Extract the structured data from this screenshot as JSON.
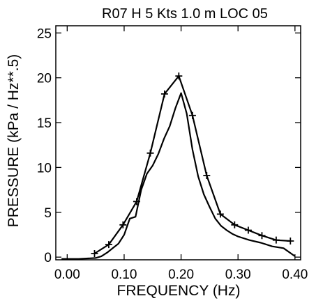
{
  "chart_data": {
    "type": "line",
    "title": "R07 H  5 Kts  1.0 m  LOC 05",
    "xlabel": "FREQUENCY  (Hz)",
    "ylabel": "PRESSURE  (kPa / Hz**.5)",
    "xlim": [
      -0.02,
      0.41
    ],
    "ylim": [
      -0.3,
      25.8
    ],
    "xticks": [
      0.0,
      0.1,
      0.2,
      0.3,
      0.4
    ],
    "xtick_labels": [
      "0.00",
      "0.10",
      "0.20",
      "0.30",
      "0.40"
    ],
    "yticks": [
      0,
      5,
      10,
      15,
      20,
      25
    ],
    "ytick_labels": [
      "0",
      "5",
      "10",
      "15",
      "20",
      "25"
    ],
    "grid": false,
    "legend": "none",
    "series": [
      {
        "marker": "plus",
        "x": [
          0.048,
          0.073,
          0.098,
          0.122,
          0.146,
          0.171,
          0.196,
          0.22,
          0.245,
          0.269,
          0.294,
          0.318,
          0.342,
          0.367,
          0.392
        ],
        "y": [
          0.4,
          1.4,
          3.6,
          6.2,
          11.6,
          18.2,
          20.2,
          15.8,
          9.1,
          4.8,
          3.6,
          3.0,
          2.4,
          1.9,
          1.8
        ]
      },
      {
        "marker": "none",
        "x": [
          -0.01,
          0.02,
          0.05,
          0.06,
          0.07,
          0.08,
          0.09,
          0.1,
          0.11,
          0.12,
          0.13,
          0.14,
          0.15,
          0.16,
          0.17,
          0.18,
          0.19,
          0.2,
          0.21,
          0.22,
          0.23,
          0.24,
          0.25,
          0.26,
          0.27,
          0.28,
          0.29,
          0.3,
          0.32,
          0.34,
          0.36,
          0.38,
          0.4
        ],
        "y": [
          -0.2,
          -0.2,
          -0.1,
          0.1,
          0.5,
          1.0,
          1.5,
          2.5,
          4.3,
          4.5,
          7.5,
          9.3,
          10.2,
          11.5,
          13.2,
          14.6,
          16.6,
          18.3,
          16.0,
          12.0,
          9.0,
          7.0,
          5.6,
          4.3,
          3.5,
          3.0,
          2.6,
          2.3,
          1.9,
          1.6,
          1.2,
          1.0,
          0.1
        ]
      }
    ]
  }
}
